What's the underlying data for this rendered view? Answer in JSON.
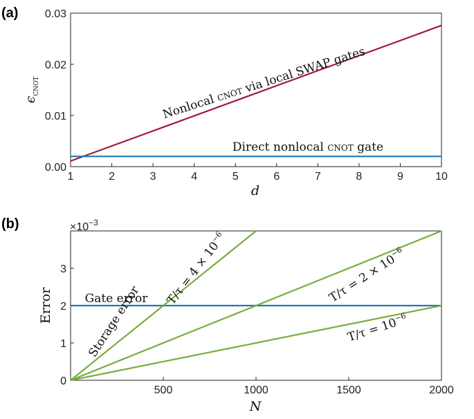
{
  "chart_data": [
    {
      "type": "line",
      "panel_label": "(a)",
      "xlabel": "d",
      "ylabel_main": "ϵ",
      "ylabel_sub": "CNOT",
      "xlim": [
        1,
        10
      ],
      "ylim": [
        0,
        0.03
      ],
      "xticks": [
        1,
        2,
        3,
        4,
        5,
        6,
        7,
        8,
        9,
        10
      ],
      "yticks": [
        0.0,
        0.01,
        0.02,
        0.03
      ],
      "ytick_labels": [
        "0.00",
        "0.01",
        "0.02",
        "0.03"
      ],
      "grid": false,
      "series": [
        {
          "color": "#a3173a",
          "x": [
            1,
            10
          ],
          "y": [
            0.0011,
            0.0276
          ],
          "annotation": {
            "pre": "Nonlocal ",
            "sc": "cnot",
            "post": " via local SWAP gates"
          }
        },
        {
          "color": "#1f77b4",
          "x": [
            1,
            10
          ],
          "y": [
            0.002,
            0.002
          ],
          "annotation": {
            "pre": "Direct nonlocal ",
            "sc": "cnot",
            "post": " gate"
          }
        }
      ]
    },
    {
      "type": "line",
      "panel_label": "(b)",
      "xlabel": "N",
      "ylabel": "Error",
      "scale_label": "×10",
      "scale_exp": "−3",
      "xlim": [
        0,
        2000
      ],
      "ylim": [
        0,
        4
      ],
      "xticks": [
        500,
        1000,
        1500,
        2000
      ],
      "yticks": [
        0,
        1,
        2,
        3
      ],
      "grid": false,
      "series": [
        {
          "color": "#1f77b4",
          "x": [
            0,
            2000
          ],
          "y": [
            2,
            2
          ],
          "annotation": {
            "text": "Gate error"
          }
        },
        {
          "color": "#77ad3c",
          "x": [
            0,
            1000
          ],
          "y": [
            0,
            4
          ],
          "annotation": {
            "text": "T/τ = 4 × 10",
            "exp": "−6"
          }
        },
        {
          "color": "#77ad3c",
          "x": [
            0,
            2000
          ],
          "y": [
            0,
            4
          ],
          "annotation": {
            "text": "T/τ = 2 × 10",
            "exp": "−6"
          }
        },
        {
          "color": "#77ad3c",
          "x": [
            0,
            2000
          ],
          "y": [
            0,
            2
          ],
          "annotation": {
            "text": "T/τ = 10",
            "exp": "−6"
          }
        }
      ],
      "extra_annotation": {
        "text": "Storage error"
      }
    }
  ]
}
